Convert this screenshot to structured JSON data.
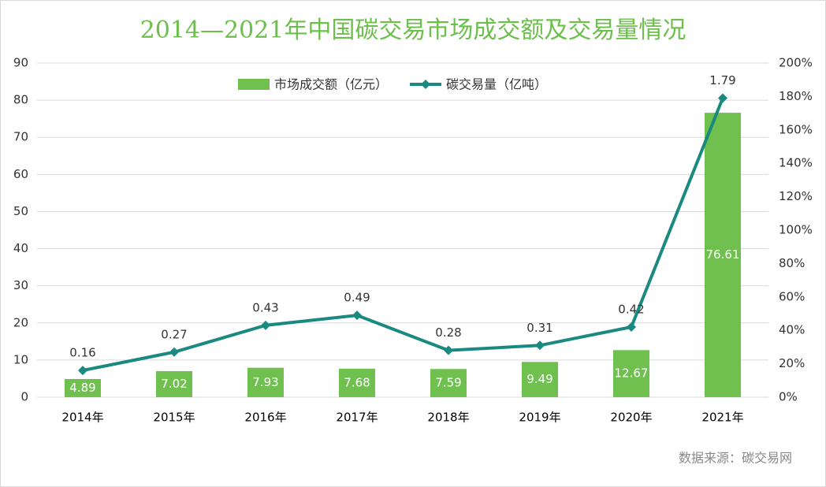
{
  "chart_data": {
    "type": "combo",
    "title": "2014—2021年中国碳交易市场成交额及交易量情况",
    "categories": [
      "2014年",
      "2015年",
      "2016年",
      "2017年",
      "2018年",
      "2019年",
      "2020年",
      "2021年"
    ],
    "series": [
      {
        "name": "市场成交额（亿元）",
        "type": "bar",
        "color": "#70c050",
        "values": [
          4.89,
          7.02,
          7.93,
          7.68,
          7.59,
          9.49,
          12.67,
          76.61
        ]
      },
      {
        "name": "碳交易量（亿吨）",
        "type": "line",
        "axis": "y2",
        "color": "#1a8a80",
        "values": [
          0.16,
          0.27,
          0.43,
          0.49,
          0.28,
          0.31,
          0.42,
          1.79
        ]
      }
    ],
    "ylim": [
      0,
      90
    ],
    "yticks": [
      0,
      10,
      20,
      30,
      40,
      50,
      60,
      70,
      80,
      90
    ],
    "y2lim": [
      0,
      2
    ],
    "y2ticks": [
      {
        "value": 0,
        "label": "0%"
      },
      {
        "value": 0.2,
        "label": "20%"
      },
      {
        "value": 0.4,
        "label": "40%"
      },
      {
        "value": 0.6,
        "label": "60%"
      },
      {
        "value": 0.8,
        "label": "80%"
      },
      {
        "value": 1,
        "label": "100%"
      },
      {
        "value": 1.2,
        "label": "120%"
      },
      {
        "value": 1.4,
        "label": "140%"
      },
      {
        "value": 1.6,
        "label": "160%"
      },
      {
        "value": 1.8,
        "label": "180%"
      },
      {
        "value": 2,
        "label": "200%"
      }
    ],
    "grid": true,
    "legend": "top",
    "source": "数据来源：碳交易网"
  }
}
